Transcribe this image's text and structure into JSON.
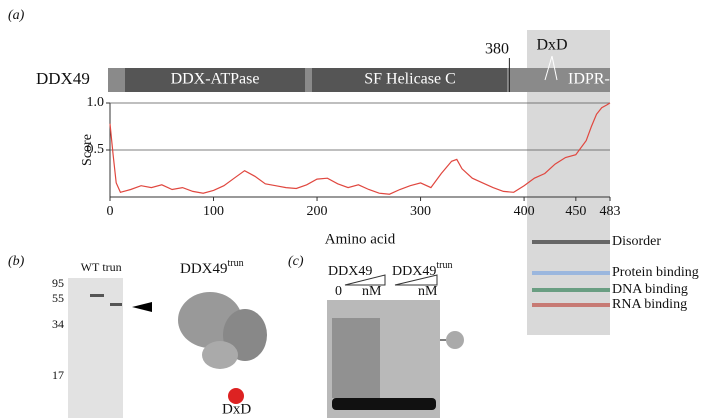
{
  "panels": {
    "a": "(a)",
    "b": "(b)",
    "c": "(c)"
  },
  "domain_map": {
    "protein": "DDX49",
    "domains": [
      "DDX-ATPase",
      "SF Helicase C"
    ],
    "marker": 380,
    "motif": "DxD",
    "region": "IDPR-C"
  },
  "chart_data": {
    "type": "line",
    "xlabel": "Amino acid",
    "ylabel": "Score",
    "x": [
      0,
      3,
      6,
      10,
      20,
      30,
      40,
      50,
      60,
      70,
      80,
      90,
      100,
      110,
      120,
      130,
      140,
      150,
      160,
      170,
      180,
      190,
      200,
      210,
      220,
      230,
      240,
      250,
      260,
      270,
      280,
      290,
      300,
      310,
      320,
      330,
      335,
      340,
      350,
      360,
      370,
      380,
      390,
      400,
      410,
      420,
      430,
      440,
      450,
      460,
      465,
      470,
      475,
      480,
      483
    ],
    "values": [
      0.78,
      0.45,
      0.15,
      0.05,
      0.08,
      0.12,
      0.1,
      0.13,
      0.08,
      0.1,
      0.06,
      0.04,
      0.07,
      0.12,
      0.2,
      0.28,
      0.22,
      0.14,
      0.12,
      0.1,
      0.09,
      0.13,
      0.19,
      0.2,
      0.14,
      0.1,
      0.13,
      0.08,
      0.04,
      0.03,
      0.08,
      0.12,
      0.15,
      0.1,
      0.25,
      0.38,
      0.4,
      0.3,
      0.2,
      0.15,
      0.1,
      0.06,
      0.05,
      0.12,
      0.2,
      0.25,
      0.35,
      0.42,
      0.45,
      0.6,
      0.75,
      0.88,
      0.95,
      0.98,
      1.0
    ],
    "color": "#e0473f",
    "xlim": [
      0,
      483
    ],
    "ylim": [
      0,
      1
    ],
    "xticks": [
      0,
      100,
      200,
      300,
      400,
      450,
      483
    ],
    "yticks": [
      0.5,
      {
        "value": 1,
        "label": "1.0"
      }
    ],
    "grid": true
  },
  "tracks": [
    "Disorder",
    "Protein binding",
    "DNA binding",
    "RNA binding"
  ],
  "gel_b": {
    "lanes": [
      "WT",
      "trun"
    ],
    "ladder": [
      95,
      55,
      34,
      17
    ]
  },
  "structure": {
    "name": "DDX49",
    "sup": "trun",
    "motif": "DxD"
  },
  "gel_c": {
    "groups": [
      {
        "name": "DDX49"
      },
      {
        "name": "DDX49",
        "sup": "trun"
      }
    ],
    "conc": [
      0,
      "nM",
      "nM"
    ]
  }
}
